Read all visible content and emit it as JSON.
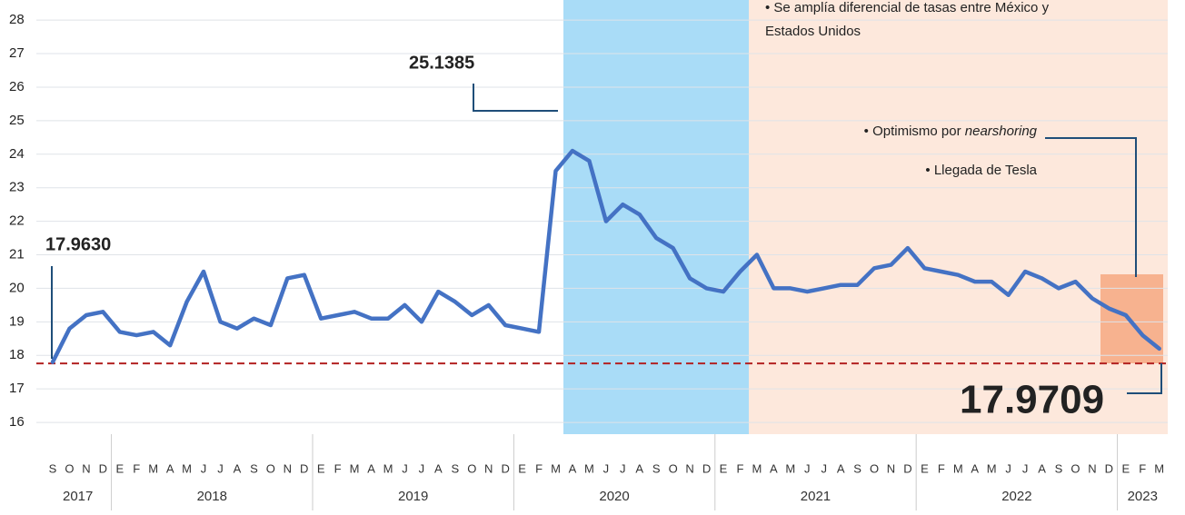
{
  "chart_data": {
    "type": "line",
    "categories": [
      "S",
      "O",
      "N",
      "D",
      "E",
      "F",
      "M",
      "A",
      "M",
      "J",
      "J",
      "A",
      "S",
      "O",
      "N",
      "D",
      "E",
      "F",
      "M",
      "A",
      "M",
      "J",
      "J",
      "A",
      "S",
      "O",
      "N",
      "D",
      "E",
      "F",
      "M",
      "A",
      "M",
      "J",
      "J",
      "A",
      "S",
      "O",
      "N",
      "D",
      "E",
      "F",
      "M",
      "A",
      "M",
      "J",
      "J",
      "A",
      "S",
      "O",
      "N",
      "D",
      "E",
      "F",
      "M",
      "A",
      "M",
      "J",
      "J",
      "A",
      "S",
      "O",
      "N",
      "D",
      "E",
      "F",
      "M"
    ],
    "years": [
      "2017",
      "2018",
      "2019",
      "2020",
      "2021",
      "2022",
      "2023"
    ],
    "series": [
      {
        "color": "#4472c4",
        "values": [
          17.8,
          18.8,
          19.2,
          19.3,
          18.7,
          18.6,
          18.7,
          18.3,
          19.6,
          20.5,
          19.0,
          18.8,
          19.1,
          18.9,
          20.3,
          20.4,
          19.1,
          19.2,
          19.3,
          19.1,
          19.1,
          19.5,
          19.0,
          19.9,
          19.6,
          19.2,
          19.5,
          18.9,
          18.8,
          18.7,
          23.5,
          24.1,
          23.8,
          22.0,
          22.5,
          22.2,
          21.5,
          21.2,
          20.3,
          20.0,
          19.9,
          20.5,
          21.0,
          20.0,
          20.0,
          19.9,
          20.0,
          20.1,
          20.1,
          20.6,
          20.7,
          21.2,
          20.6,
          20.5,
          20.4,
          20.2,
          20.2,
          19.8,
          20.5,
          20.3,
          20.0,
          20.2,
          19.7,
          19.4,
          19.2,
          18.6,
          18.2
        ]
      }
    ],
    "ylim": [
      15.65,
      28.6
    ],
    "yticks": [
      16,
      17,
      18,
      19,
      20,
      21,
      22,
      23,
      24,
      25,
      26,
      27,
      28
    ],
    "grid": true,
    "reference_line": {
      "value": 17.76,
      "color": "#b22222"
    },
    "annotations": {
      "start": "17.9630",
      "peak": "25.1385",
      "end": "17.9709",
      "rates_1": "• Se amplía diferencial de tasas entre México y",
      "rates_2": "Estados Unidos",
      "nearshoring_1": "• Optimismo por ",
      "nearshoring_2": "nearshoring",
      "tesla": "• Llegada de Tesla"
    }
  }
}
